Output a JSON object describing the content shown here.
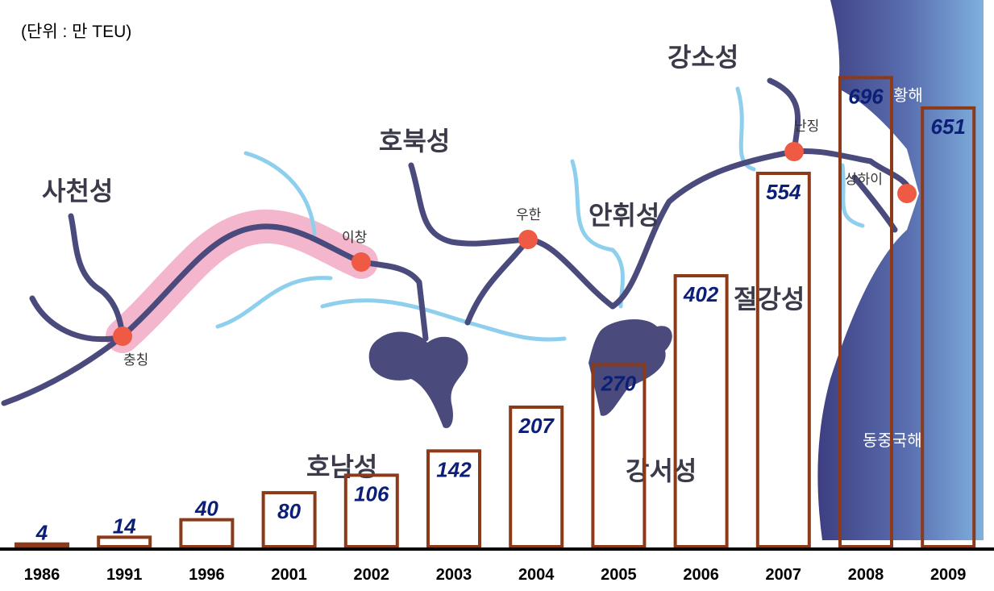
{
  "chart_data": {
    "type": "bar",
    "unit_note": "(단위 : 만 TEU)",
    "categories": [
      "1986",
      "1991",
      "1996",
      "2001",
      "2002",
      "2003",
      "2004",
      "2005",
      "2006",
      "2007",
      "2008",
      "2009"
    ],
    "values": [
      4,
      14,
      40,
      80,
      106,
      142,
      207,
      270,
      402,
      554,
      696,
      651
    ],
    "ylim": [
      0,
      700
    ],
    "bar_style": {
      "fill": "none",
      "stroke": "#8b3a1a"
    },
    "label_color": "#0b1f78"
  },
  "map": {
    "regions": [
      {
        "name": "사천성"
      },
      {
        "name": "호북성"
      },
      {
        "name": "안휘성"
      },
      {
        "name": "강소성"
      },
      {
        "name": "절강성"
      },
      {
        "name": "강서성"
      },
      {
        "name": "호남성"
      }
    ],
    "cities": [
      "충칭",
      "이창",
      "우한",
      "난징",
      "상하이"
    ],
    "seas": [
      "황해",
      "동중국해"
    ],
    "colors": {
      "river_main": "#4a4a7c",
      "river_minor": "#8fcfee",
      "highlight": "#f4b6cc",
      "city_dot": "#ee5a44",
      "sea_dark": "#4a4f8c",
      "sea_light": "#7aa8d8"
    }
  }
}
